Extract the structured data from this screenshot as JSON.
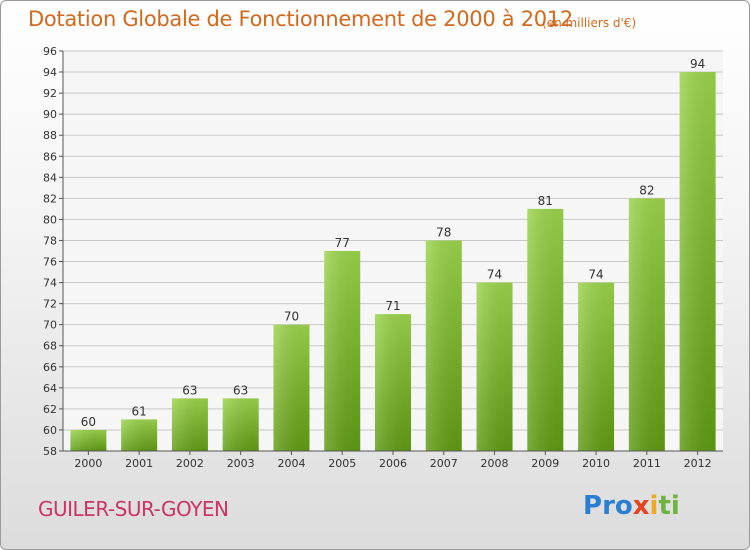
{
  "header": {
    "title": "Dotation Globale de Fonctionnement de 2000 à 2012",
    "subtitle": "(en milliers d'€)"
  },
  "footer": {
    "commune": "GUILER-SUR-GOYEN",
    "logo_letters": [
      {
        "char": "P",
        "color": "#2a7fd4"
      },
      {
        "char": "r",
        "color": "#2a7fd4"
      },
      {
        "char": "o",
        "color": "#2a7fd4"
      },
      {
        "char": "x",
        "color": "#e8421e"
      },
      {
        "char": "i",
        "color": "#f2a81d"
      },
      {
        "char": "t",
        "color": "#6db33f"
      },
      {
        "char": "i",
        "color": "#6db33f"
      }
    ]
  },
  "chart_data": {
    "type": "bar",
    "categories": [
      "2000",
      "2001",
      "2002",
      "2003",
      "2004",
      "2005",
      "2006",
      "2007",
      "2008",
      "2009",
      "2010",
      "2011",
      "2012"
    ],
    "values": [
      60,
      61,
      63,
      63,
      70,
      77,
      71,
      78,
      74,
      81,
      74,
      82,
      94
    ],
    "ylim": [
      58,
      96
    ],
    "yticks": [
      58,
      60,
      62,
      64,
      66,
      68,
      70,
      72,
      74,
      76,
      78,
      80,
      82,
      84,
      86,
      88,
      90,
      92,
      94,
      96
    ],
    "grid": true,
    "bar_color": "#7dbb2c",
    "title": "Dotation Globale de Fonctionnement de 2000 à 2012",
    "subtitle": "(en milliers d'€)"
  }
}
